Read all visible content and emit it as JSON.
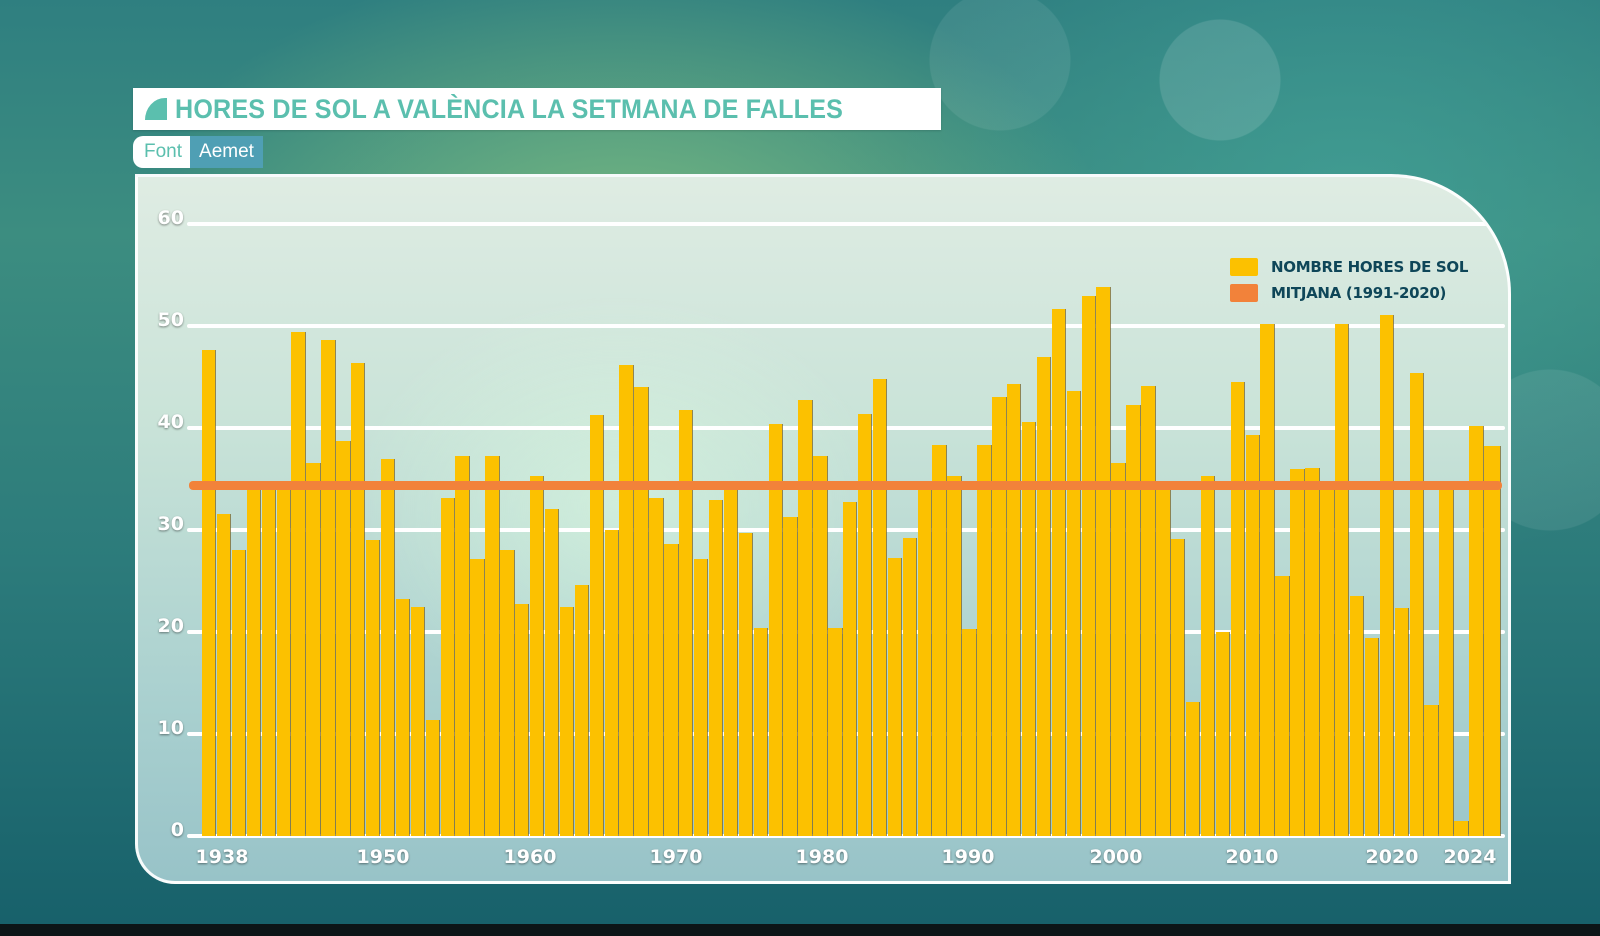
{
  "header": {
    "title": "HORES DE SOL A VALÈNCIA LA SETMANA DE FALLES",
    "title_icon": "quarter-circle-icon",
    "source_label": "Font",
    "source_value": "Aemet"
  },
  "colors": {
    "bar": "#fcc100",
    "mean": "#f2823a",
    "title_text": "#5bbfae",
    "legend_text": "#0e4658",
    "source_badge": "#4f9fb4"
  },
  "legend": [
    {
      "label": "NOMBRE HORES DE SOL",
      "color": "#fcc100"
    },
    {
      "label": "MITJANA (1991-2020)",
      "color": "#f2823a"
    }
  ],
  "chart_data": {
    "type": "bar",
    "title": "HORES DE SOL A VALÈNCIA LA SETMANA DE FALLES",
    "source": "Font Aemet",
    "xlabel": "",
    "ylabel": "",
    "ylim": [
      0,
      60
    ],
    "yticks": [
      0,
      10,
      20,
      30,
      40,
      50,
      60
    ],
    "xtick_labels": [
      "1938",
      "1950",
      "1960",
      "1970",
      "1980",
      "1990",
      "2000",
      "2010",
      "2020",
      "2024"
    ],
    "grid": true,
    "legend_position": "top-right",
    "categories": [
      1938,
      1939,
      1940,
      1941,
      1942,
      1943,
      1944,
      1945,
      1946,
      1947,
      1948,
      1949,
      1950,
      1951,
      1952,
      1953,
      1954,
      1955,
      1956,
      1957,
      1958,
      1959,
      1960,
      1961,
      1962,
      1963,
      1964,
      1965,
      1966,
      1967,
      1968,
      1969,
      1970,
      1971,
      1972,
      1973,
      1974,
      1975,
      1976,
      1977,
      1978,
      1979,
      1980,
      1981,
      1982,
      1983,
      1984,
      1985,
      1986,
      1987,
      1988,
      1989,
      1990,
      1991,
      1992,
      1993,
      1994,
      1995,
      1996,
      1997,
      1998,
      1999,
      2000,
      2001,
      2002,
      2003,
      2004,
      2005,
      2006,
      2007,
      2008,
      2009,
      2010,
      2011,
      2012,
      2013,
      2014,
      2015,
      2016,
      2017,
      2018,
      2019,
      2020,
      2021,
      2022,
      2023,
      2024
    ],
    "series": [
      {
        "name": "NOMBRE HORES DE SOL",
        "type": "bar",
        "values": [
          47.6,
          31.6,
          28.0,
          34.5,
          34.5,
          34.5,
          49.4,
          36.6,
          48.6,
          38.7,
          46.4,
          29.0,
          37.0,
          23.2,
          22.5,
          11.4,
          33.1,
          37.3,
          27.2,
          37.3,
          28.0,
          22.7,
          35.3,
          32.1,
          22.5,
          24.6,
          41.3,
          30.0,
          46.2,
          44.0,
          33.1,
          28.6,
          41.8,
          27.2,
          32.9,
          33.9,
          29.7,
          20.4,
          40.4,
          31.3,
          42.7,
          37.3,
          20.4,
          32.7,
          41.4,
          44.8,
          27.3,
          29.2,
          33.9,
          38.3,
          35.3,
          20.3,
          38.3,
          43.0,
          44.3,
          40.6,
          47.0,
          51.7,
          43.6,
          52.9,
          53.8,
          36.6,
          42.3,
          44.1,
          34.3,
          29.1,
          13.1,
          35.3,
          20.0,
          44.5,
          39.3,
          50.2,
          25.5,
          36.0,
          36.1,
          34.0,
          50.2,
          23.5,
          19.4,
          51.1,
          22.4,
          45.4,
          12.8,
          34.0,
          1.5,
          40.2,
          38.2
        ]
      },
      {
        "name": "MITJANA (1991-2020)",
        "type": "line",
        "value": 34.4
      }
    ]
  }
}
